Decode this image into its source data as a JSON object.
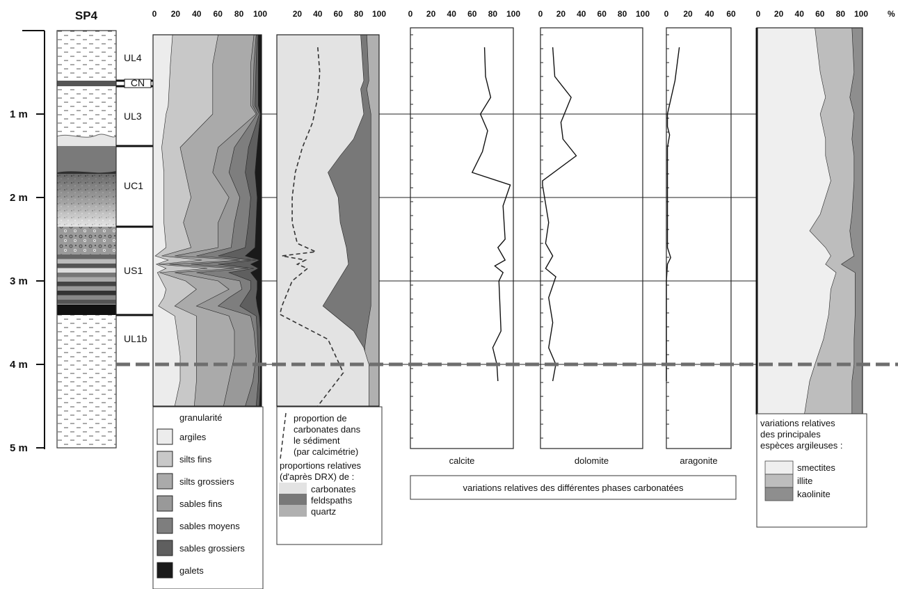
{
  "section_title": "SP4",
  "percent_sign": "%",
  "depth_axis": {
    "labels": [
      "1 m",
      "2 m",
      "3 m",
      "4 m",
      "5 m"
    ],
    "values": [
      1,
      2,
      3,
      4,
      5
    ],
    "range": [
      0,
      5
    ]
  },
  "units": [
    {
      "label": "UL4",
      "top": 0.0,
      "bottom": 0.6
    },
    {
      "label": "CN",
      "top": 0.6,
      "bottom": 0.72
    },
    {
      "label": "UL3",
      "top": 0.72,
      "bottom": 1.4
    },
    {
      "label": "UC1",
      "top": 1.4,
      "bottom": 2.35
    },
    {
      "label": "US1",
      "top": 2.35,
      "bottom": 3.42
    },
    {
      "label": "UL1b",
      "top": 3.42,
      "bottom": 5.0
    }
  ],
  "colors": {
    "c1": "#ececec",
    "c2": "#c8c8c8",
    "c3": "#aaaaaa",
    "c4": "#999999",
    "c5": "#7e7e7e",
    "c6": "#5f5f5f",
    "c7": "#1a1a1a",
    "carb": "#e3e3e3",
    "feld": "#787878",
    "qtz": "#b0b0b0",
    "smec": "#efefef",
    "illi": "#bdbdbd",
    "kaol": "#8e8e8e",
    "dash": "#777777"
  },
  "legends": {
    "granularite": {
      "title": "granularité",
      "items": [
        {
          "label": "argiles",
          "color": "#ececec"
        },
        {
          "label": "silts fins",
          "color": "#c8c8c8"
        },
        {
          "label": "silts grossiers",
          "color": "#aaaaaa"
        },
        {
          "label": "sables fins",
          "color": "#999999"
        },
        {
          "label": "sables moyens",
          "color": "#7e7e7e"
        },
        {
          "label": "sables grossiers",
          "color": "#5f5f5f"
        },
        {
          "label": "galets",
          "color": "#1a1a1a"
        }
      ]
    },
    "mineralogy": {
      "dash_lines": [
        "proportion de",
        "carbonates dans",
        "le sédiment",
        "(par calcimétrie)"
      ],
      "rel_lines": [
        "proportions relatives",
        "(d'après DRX) de :"
      ],
      "items": [
        {
          "label": "carbonates",
          "color": "#e3e3e3"
        },
        {
          "label": "feldspaths",
          "color": "#787878"
        },
        {
          "label": "quartz",
          "color": "#b0b0b0"
        }
      ]
    },
    "carbonate_phases": "variations relatives des différentes phases carbonatées",
    "clay": {
      "lines": [
        "variations relatives",
        "des principales",
        "espèces argileuses :"
      ],
      "items": [
        {
          "label": "smectites",
          "color": "#efefef"
        },
        {
          "label": "illite",
          "color": "#bdbdbd"
        },
        {
          "label": "kaolinite",
          "color": "#8e8e8e"
        }
      ]
    }
  },
  "chart_data": [
    {
      "type": "area",
      "id": "granularite",
      "xlim": [
        0,
        100
      ],
      "ticks": [
        0,
        20,
        40,
        60,
        80,
        100
      ],
      "depth": [
        0.05,
        0.4,
        0.9,
        1.0,
        1.4,
        1.7,
        2.0,
        2.3,
        2.6,
        2.7,
        2.75,
        2.8,
        2.85,
        2.9,
        3.0,
        3.1,
        3.2,
        3.3,
        3.42,
        3.6,
        3.9,
        4.2,
        4.5
      ],
      "cumulative": [
        {
          "name": "argiles",
          "values": [
            18,
            16,
            14,
            12,
            8,
            10,
            10,
            10,
            12,
            2,
            14,
            3,
            12,
            4,
            8,
            12,
            10,
            5,
            20,
            22,
            25,
            25,
            20
          ]
        },
        {
          "name": "silts fins",
          "values": [
            60,
            55,
            55,
            55,
            25,
            30,
            35,
            28,
            35,
            8,
            45,
            5,
            50,
            6,
            30,
            40,
            30,
            20,
            40,
            40,
            40,
            40,
            38
          ]
        },
        {
          "name": "silts grossiers",
          "values": [
            93,
            90,
            90,
            95,
            60,
            55,
            70,
            60,
            60,
            20,
            80,
            15,
            75,
            20,
            60,
            70,
            55,
            40,
            70,
            75,
            75,
            70,
            65
          ]
        },
        {
          "name": "sables fins",
          "values": [
            95,
            93,
            92,
            96,
            75,
            70,
            80,
            75,
            72,
            40,
            90,
            35,
            88,
            40,
            80,
            82,
            70,
            60,
            90,
            93,
            95,
            92,
            85
          ]
        },
        {
          "name": "sables moyens",
          "values": [
            96,
            95,
            94,
            98,
            88,
            85,
            90,
            88,
            85,
            60,
            95,
            60,
            93,
            70,
            90,
            90,
            85,
            80,
            95,
            96,
            97,
            97,
            95
          ]
        },
        {
          "name": "sables grossiers",
          "values": [
            97,
            97,
            97,
            99,
            96,
            94,
            96,
            95,
            94,
            85,
            98,
            90,
            97,
            90,
            96,
            96,
            95,
            96,
            98,
            99,
            99,
            99,
            98
          ]
        },
        {
          "name": "galets",
          "values": [
            100,
            100,
            100,
            100,
            100,
            100,
            100,
            100,
            100,
            100,
            100,
            100,
            100,
            100,
            100,
            100,
            100,
            100,
            100,
            100,
            100,
            100,
            100
          ]
        }
      ]
    },
    {
      "type": "area",
      "id": "mineralogie",
      "xlim": [
        0,
        100
      ],
      "ticks": [
        20,
        40,
        60,
        80,
        100
      ],
      "depth": [
        0.05,
        0.6,
        0.7,
        1.0,
        1.3,
        1.5,
        1.7,
        2.0,
        2.3,
        2.6,
        2.8,
        3.0,
        3.3,
        3.6,
        3.8,
        4.0,
        4.2,
        4.5
      ],
      "cumulative": [
        {
          "name": "carbonates",
          "values": [
            82,
            85,
            82,
            85,
            75,
            62,
            50,
            60,
            62,
            68,
            70,
            60,
            45,
            75,
            85,
            90,
            90,
            90
          ]
        },
        {
          "name": "feldspaths",
          "values": [
            88,
            90,
            88,
            92,
            92,
            92,
            92,
            92,
            92,
            92,
            92,
            92,
            92,
            88,
            86,
            86,
            88,
            88
          ]
        },
        {
          "name": "quartz",
          "values": [
            100,
            100,
            100,
            100,
            100,
            100,
            100,
            100,
            100,
            100,
            100,
            100,
            100,
            100,
            100,
            100,
            100,
            100
          ]
        }
      ],
      "calcimetry": {
        "name": "proportion de carbonates dans le sédiment",
        "depth": [
          0.2,
          0.5,
          0.8,
          1.1,
          1.4,
          1.7,
          2.0,
          2.3,
          2.55,
          2.65,
          2.7,
          2.75,
          2.8,
          2.85,
          3.0,
          3.3,
          3.4,
          3.7,
          4.1,
          4.5
        ],
        "values": [
          40,
          42,
          40,
          35,
          25,
          18,
          15,
          15,
          20,
          38,
          5,
          28,
          20,
          30,
          15,
          5,
          3,
          50,
          65,
          40
        ]
      }
    },
    {
      "type": "line",
      "id": "calcite",
      "label": "calcite",
      "xlim": [
        0,
        100
      ],
      "ticks": [
        0,
        20,
        40,
        60,
        80,
        100
      ],
      "depth": [
        0.2,
        0.55,
        0.8,
        1.0,
        1.2,
        1.45,
        1.7,
        1.85,
        2.1,
        2.5,
        2.6,
        2.75,
        2.82,
        2.9,
        3.0,
        3.3,
        3.6,
        3.8,
        4.0,
        4.2
      ],
      "values": [
        72,
        73,
        78,
        68,
        75,
        70,
        60,
        97,
        90,
        92,
        85,
        92,
        82,
        90,
        86,
        87,
        88,
        80,
        84,
        85
      ]
    },
    {
      "type": "line",
      "id": "dolomite",
      "label": "dolomite",
      "xlim": [
        0,
        100
      ],
      "ticks": [
        0,
        20,
        40,
        60,
        80,
        100
      ],
      "depth": [
        0.2,
        0.55,
        0.8,
        1.1,
        1.3,
        1.5,
        1.8,
        1.85,
        2.3,
        2.55,
        2.7,
        2.85,
        2.95,
        3.2,
        3.5,
        3.8,
        4.0,
        4.2
      ],
      "values": [
        12,
        14,
        30,
        20,
        22,
        35,
        2,
        2,
        8,
        5,
        12,
        5,
        15,
        8,
        12,
        8,
        15,
        12
      ]
    },
    {
      "type": "line",
      "id": "aragonite",
      "label": "aragonite",
      "xlim": [
        0,
        60
      ],
      "ticks": [
        0,
        20,
        40,
        60
      ],
      "depth": [
        0.2,
        0.6,
        1.0,
        1.15,
        1.25,
        1.4,
        2.6,
        2.72,
        2.8,
        3.0,
        4.2
      ],
      "values": [
        12,
        8,
        1,
        1,
        3,
        1,
        1,
        4,
        1,
        0,
        0
      ]
    },
    {
      "type": "area",
      "id": "argiles",
      "xlim": [
        0,
        100
      ],
      "ticks": [
        0,
        20,
        40,
        60,
        80,
        100
      ],
      "depth": [
        0.0,
        0.5,
        0.8,
        1.0,
        1.3,
        1.5,
        1.8,
        2.2,
        2.4,
        2.6,
        2.7,
        2.8,
        2.9,
        3.1,
        3.4,
        3.7,
        4.0,
        4.2,
        4.6
      ],
      "cumulative": [
        {
          "name": "smectites",
          "values": [
            55,
            60,
            65,
            60,
            65,
            65,
            70,
            60,
            50,
            65,
            70,
            65,
            75,
            70,
            68,
            63,
            55,
            50,
            45
          ]
        },
        {
          "name": "illite",
          "values": [
            90,
            92,
            88,
            92,
            90,
            92,
            92,
            90,
            88,
            90,
            92,
            80,
            93,
            93,
            93,
            92,
            92,
            90,
            90
          ]
        },
        {
          "name": "kaolinite",
          "values": [
            100,
            100,
            100,
            100,
            100,
            100,
            100,
            100,
            100,
            100,
            100,
            100,
            100,
            100,
            100,
            100,
            100,
            100,
            100
          ]
        }
      ]
    }
  ]
}
